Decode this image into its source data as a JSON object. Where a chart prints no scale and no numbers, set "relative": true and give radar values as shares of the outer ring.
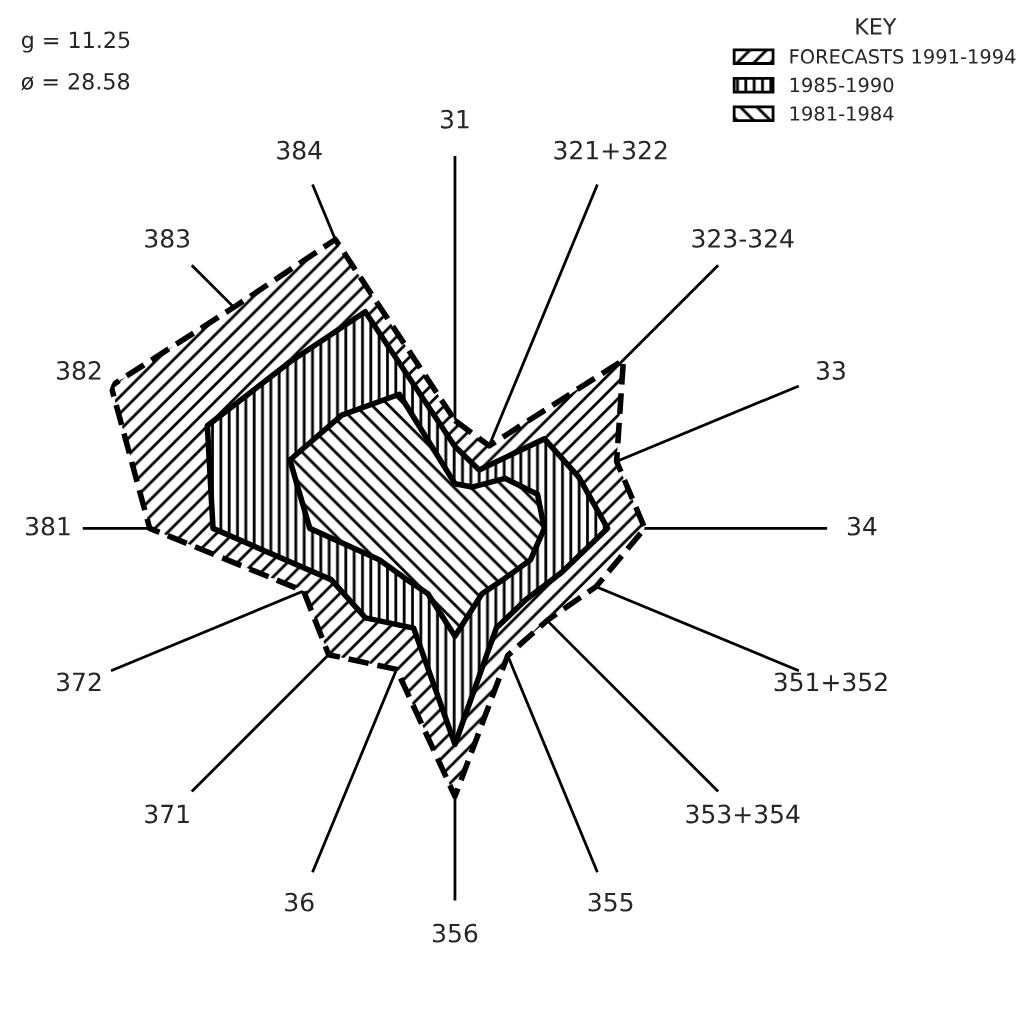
{
  "chart_data": {
    "type": "radar",
    "relative": true,
    "categories": [
      "31",
      "321+322",
      "323-324",
      "33",
      "34",
      "351+352",
      "353+354",
      "355",
      "356",
      "36",
      "371",
      "372",
      "381",
      "382",
      "383",
      "384"
    ],
    "series": [
      {
        "name": "FORECASTS 1991-1994",
        "color": "#000000",
        "line_style": "dashed",
        "values": [
          0.29,
          0.24,
          0.64,
          0.47,
          0.51,
          0.41,
          0.35,
          0.37,
          0.72,
          0.41,
          0.48,
          0.44,
          0.82,
          1.0,
          0.84,
          0.84
        ]
      },
      {
        "name": "1985-1990",
        "color": "#000000",
        "line_style": "solid",
        "values": [
          0.22,
          0.17,
          0.34,
          0.36,
          0.41,
          0.31,
          0.27,
          0.29,
          0.58,
          0.29,
          0.34,
          0.36,
          0.65,
          0.72,
          0.63,
          0.63
        ]
      },
      {
        "name": "1981-1984",
        "color": "#000000",
        "line_style": "solid",
        "values": [
          0.12,
          0.12,
          0.19,
          0.24,
          0.24,
          0.22,
          0.19,
          0.19,
          0.29,
          0.19,
          0.19,
          0.22,
          0.39,
          0.48,
          0.43,
          0.39
        ]
      }
    ],
    "legend_title": "KEY",
    "legend": "top right",
    "grid": "x",
    "annotations": [
      "g = 11.25",
      "ø = 28.58"
    ]
  }
}
